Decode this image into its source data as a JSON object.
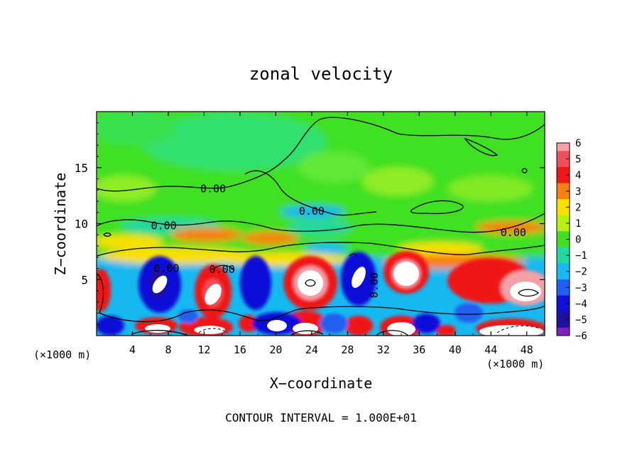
{
  "chart_data": {
    "type": "heatmap",
    "title": "zonal velocity",
    "xlabel": "X−coordinate",
    "ylabel": "Z−coordinate",
    "x_unit_left": "(×1000 m)",
    "x_unit_right": "(×1000 m)",
    "xlim": [
      0,
      50
    ],
    "ylim": [
      0,
      20
    ],
    "x_ticks": [
      {
        "v": 4,
        "label": "4"
      },
      {
        "v": 8,
        "label": "8"
      },
      {
        "v": 12,
        "label": "12"
      },
      {
        "v": 16,
        "label": "16"
      },
      {
        "v": 20,
        "label": "20"
      },
      {
        "v": 24,
        "label": "24"
      },
      {
        "v": 28,
        "label": "28"
      },
      {
        "v": 32,
        "label": "32"
      },
      {
        "v": 36,
        "label": "36"
      },
      {
        "v": 40,
        "label": "40"
      },
      {
        "v": 44,
        "label": "44"
      },
      {
        "v": 48,
        "label": "48"
      }
    ],
    "y_ticks": [
      {
        "v": 5,
        "label": "5"
      },
      {
        "v": 10,
        "label": "10"
      },
      {
        "v": 15,
        "label": "15"
      }
    ],
    "colorbar": {
      "min": -6,
      "max": 6,
      "levels": [
        {
          "label": "6",
          "color": "#f4a0a8"
        },
        {
          "label": "5",
          "color": "#f0505a"
        },
        {
          "label": "4",
          "color": "#f01818"
        },
        {
          "label": "3",
          "color": "#f88010"
        },
        {
          "label": "2",
          "color": "#f8e000"
        },
        {
          "label": "1",
          "color": "#b8f010"
        },
        {
          "label": "0",
          "color": "#40e020"
        },
        {
          "label": "−1",
          "color": "#20d8a0"
        },
        {
          "label": "−2",
          "color": "#18b8f0"
        },
        {
          "label": "−3",
          "color": "#2060f0"
        },
        {
          "label": "−4",
          "color": "#1010d8"
        },
        {
          "label": "−5",
          "color": "#2010a0"
        },
        {
          "label": "−6",
          "color": "#8020c0"
        }
      ]
    },
    "contour_labels": [
      {
        "x": 13.0,
        "z": 13.1,
        "label": "0.00"
      },
      {
        "x": 24.0,
        "z": 11.1,
        "label": "0.00"
      },
      {
        "x": 7.5,
        "z": 9.8,
        "label": "0.00"
      },
      {
        "x": 46.5,
        "z": 9.2,
        "label": "0.00"
      },
      {
        "x": 7.8,
        "z": 6.0,
        "label": "0.00"
      },
      {
        "x": 14.0,
        "z": 5.9,
        "label": "0.00"
      },
      {
        "x": 31.0,
        "z": 4.5,
        "label": "0.00",
        "vertical": true
      }
    ],
    "footer": "CONTOUR INTERVAL = 1.000E+01"
  }
}
